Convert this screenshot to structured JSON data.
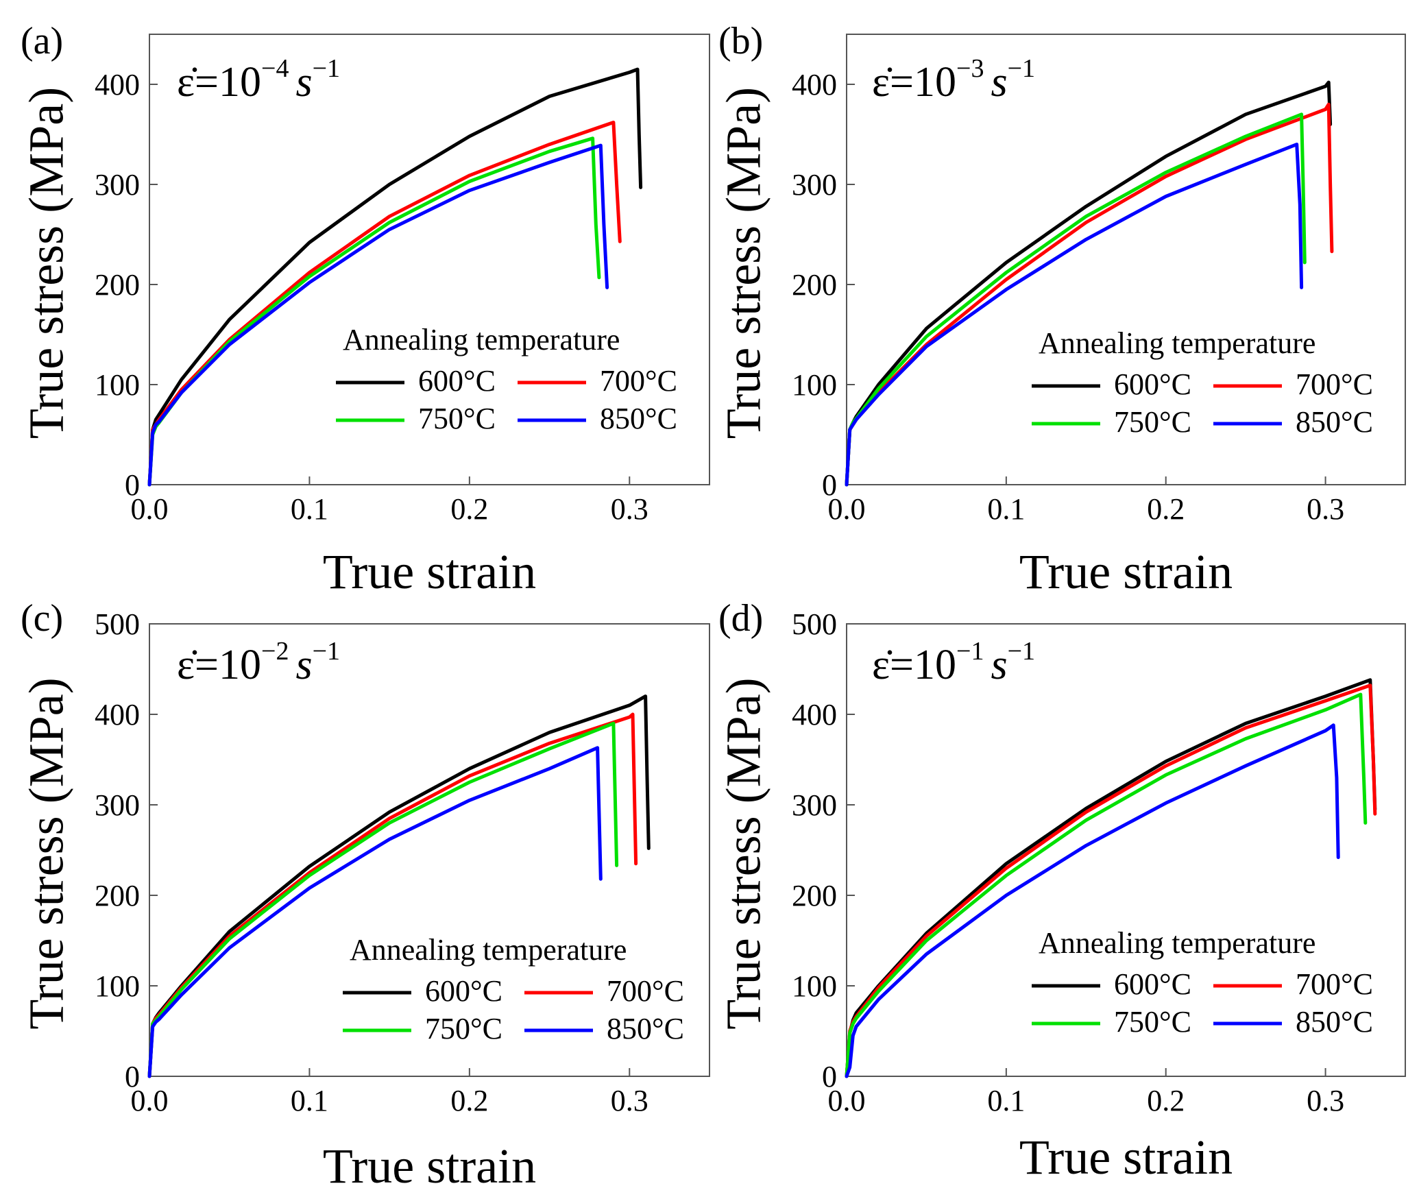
{
  "figure": {
    "legend_title": "Annealing temperature",
    "series_names": [
      "600°C",
      "700°C",
      "750°C",
      "850°C"
    ],
    "series_colors": [
      "#000000",
      "#ff0000",
      "#00e000",
      "#0000ff"
    ]
  },
  "chart_data": [
    {
      "type": "line",
      "panel_label": "(a)",
      "strain_rate": {
        "prefix": "ε̇=10",
        "exponent": "−4",
        "unit": "s",
        "unit_exponent": "−1"
      },
      "xlabel": "True strain",
      "ylabel": "True stress (MPa)",
      "xlim": [
        0.0,
        0.35
      ],
      "ylim": [
        0,
        450
      ],
      "xticks": [
        0.0,
        0.1,
        0.2,
        0.3
      ],
      "xtick_labels": [
        "0.0",
        "0.1",
        "0.2",
        "0.3"
      ],
      "yticks": [
        0,
        100,
        200,
        300,
        400
      ],
      "ytick_labels": [
        "0",
        "100",
        "200",
        "300",
        "400"
      ],
      "legend": {
        "title": "Annealing temperature",
        "position": "lower-right"
      },
      "series": [
        {
          "name": "600°C",
          "color": "#000000",
          "x": [
            0.0,
            0.002,
            0.004,
            0.006,
            0.02,
            0.05,
            0.1,
            0.15,
            0.2,
            0.25,
            0.3,
            0.305,
            0.306,
            0.307
          ],
          "y": [
            0,
            55,
            65,
            70,
            105,
            165,
            242,
            300,
            348,
            388,
            412,
            415,
            350,
            297
          ]
        },
        {
          "name": "700°C",
          "color": "#ff0000",
          "x": [
            0.0,
            0.002,
            0.004,
            0.006,
            0.02,
            0.05,
            0.1,
            0.15,
            0.2,
            0.25,
            0.29,
            0.292,
            0.294
          ],
          "y": [
            0,
            55,
            60,
            65,
            95,
            145,
            212,
            268,
            309,
            340,
            362,
            300,
            243
          ]
        },
        {
          "name": "750°C",
          "color": "#00e000",
          "x": [
            0.0,
            0.002,
            0.004,
            0.006,
            0.02,
            0.05,
            0.1,
            0.15,
            0.2,
            0.25,
            0.277,
            0.279,
            0.281
          ],
          "y": [
            0,
            50,
            58,
            62,
            92,
            143,
            208,
            262,
            303,
            333,
            346,
            260,
            207
          ]
        },
        {
          "name": "850°C",
          "color": "#0000ff",
          "x": [
            0.0,
            0.002,
            0.004,
            0.006,
            0.02,
            0.05,
            0.1,
            0.15,
            0.2,
            0.25,
            0.282,
            0.284,
            0.286
          ],
          "y": [
            0,
            52,
            60,
            63,
            92,
            140,
            202,
            255,
            294,
            322,
            339,
            260,
            197
          ]
        }
      ]
    },
    {
      "type": "line",
      "panel_label": "(b)",
      "strain_rate": {
        "prefix": "ε̇=10",
        "exponent": "−3",
        "unit": "s",
        "unit_exponent": "−1"
      },
      "xlabel": "True strain",
      "ylabel": "True stress (MPa)",
      "xlim": [
        0.0,
        0.35
      ],
      "ylim": [
        0,
        450
      ],
      "xticks": [
        0.0,
        0.1,
        0.2,
        0.3
      ],
      "xtick_labels": [
        "0.0",
        "0.1",
        "0.2",
        "0.3"
      ],
      "yticks": [
        0,
        100,
        200,
        300,
        400
      ],
      "ytick_labels": [
        "0",
        "100",
        "200",
        "300",
        "400"
      ],
      "legend": {
        "title": "Annealing temperature",
        "position": "lower-right"
      },
      "series": [
        {
          "name": "600°C",
          "color": "#000000",
          "x": [
            0.0,
            0.002,
            0.004,
            0.006,
            0.02,
            0.05,
            0.1,
            0.15,
            0.2,
            0.25,
            0.3,
            0.302,
            0.303
          ],
          "y": [
            0,
            55,
            62,
            68,
            100,
            156,
            222,
            278,
            328,
            370,
            398,
            402,
            360
          ]
        },
        {
          "name": "700°C",
          "color": "#ff0000",
          "x": [
            0.0,
            0.002,
            0.004,
            0.006,
            0.02,
            0.05,
            0.1,
            0.15,
            0.2,
            0.25,
            0.3,
            0.302,
            0.303,
            0.304
          ],
          "y": [
            0,
            55,
            60,
            65,
            92,
            140,
            205,
            262,
            308,
            345,
            375,
            380,
            300,
            233
          ]
        },
        {
          "name": "750°C",
          "color": "#00e000",
          "x": [
            0.0,
            0.002,
            0.004,
            0.006,
            0.02,
            0.05,
            0.1,
            0.15,
            0.2,
            0.25,
            0.285,
            0.286,
            0.287
          ],
          "y": [
            0,
            55,
            62,
            66,
            96,
            148,
            212,
            268,
            312,
            348,
            370,
            300,
            222
          ]
        },
        {
          "name": "850°C",
          "color": "#0000ff",
          "x": [
            0.0,
            0.002,
            0.004,
            0.006,
            0.02,
            0.05,
            0.1,
            0.15,
            0.2,
            0.25,
            0.282,
            0.284,
            0.285
          ],
          "y": [
            0,
            55,
            60,
            65,
            90,
            138,
            195,
            245,
            288,
            320,
            340,
            280,
            197
          ]
        }
      ]
    },
    {
      "type": "line",
      "panel_label": "(c)",
      "strain_rate": {
        "prefix": "ε̇=10",
        "exponent": "−2",
        "unit": "s",
        "unit_exponent": "−1"
      },
      "xlabel": "True strain",
      "ylabel": "True stress (MPa)",
      "xlim": [
        0.0,
        0.35
      ],
      "ylim": [
        0,
        500
      ],
      "xticks": [
        0.0,
        0.1,
        0.2,
        0.3
      ],
      "xtick_labels": [
        "0.0",
        "0.1",
        "0.2",
        "0.3"
      ],
      "yticks": [
        0,
        100,
        200,
        300,
        400,
        500
      ],
      "ytick_labels": [
        "0",
        "100",
        "200",
        "300",
        "400",
        "500"
      ],
      "legend": {
        "title": "Annealing temperature",
        "position": "lower-right"
      },
      "series": [
        {
          "name": "600°C",
          "color": "#000000",
          "x": [
            0.0,
            0.002,
            0.004,
            0.006,
            0.02,
            0.05,
            0.1,
            0.15,
            0.2,
            0.25,
            0.3,
            0.31,
            0.311,
            0.312
          ],
          "y": [
            0,
            58,
            65,
            70,
            100,
            160,
            232,
            292,
            340,
            380,
            410,
            420,
            330,
            252
          ]
        },
        {
          "name": "700°C",
          "color": "#ff0000",
          "x": [
            0.0,
            0.002,
            0.004,
            0.006,
            0.02,
            0.05,
            0.1,
            0.15,
            0.2,
            0.25,
            0.3,
            0.302,
            0.304
          ],
          "y": [
            0,
            58,
            64,
            68,
            98,
            155,
            225,
            285,
            332,
            368,
            397,
            400,
            235
          ]
        },
        {
          "name": "750°C",
          "color": "#00e000",
          "x": [
            0.0,
            0.002,
            0.004,
            0.006,
            0.02,
            0.05,
            0.1,
            0.15,
            0.2,
            0.25,
            0.29,
            0.292
          ],
          "y": [
            0,
            58,
            62,
            66,
            96,
            152,
            222,
            280,
            325,
            362,
            390,
            233
          ]
        },
        {
          "name": "850°C",
          "color": "#0000ff",
          "x": [
            0.0,
            0.002,
            0.004,
            0.006,
            0.02,
            0.05,
            0.1,
            0.15,
            0.2,
            0.25,
            0.28,
            0.282
          ],
          "y": [
            0,
            55,
            60,
            63,
            90,
            142,
            208,
            262,
            305,
            340,
            363,
            218
          ]
        }
      ]
    },
    {
      "type": "line",
      "panel_label": "(d)",
      "strain_rate": {
        "prefix": "ε̇=10",
        "exponent": "−1",
        "unit": "s",
        "unit_exponent": "−1"
      },
      "xlabel": "True strain",
      "ylabel": "True stress (MPa)",
      "xlim": [
        0.0,
        0.35
      ],
      "ylim": [
        0,
        500
      ],
      "xticks": [
        0.0,
        0.1,
        0.2,
        0.3
      ],
      "xtick_labels": [
        "0.0",
        "0.1",
        "0.2",
        "0.3"
      ],
      "yticks": [
        0,
        100,
        200,
        300,
        400,
        500
      ],
      "ytick_labels": [
        "0",
        "100",
        "200",
        "300",
        "400",
        "500"
      ],
      "legend": {
        "title": "Annealing temperature",
        "position": "lower-right"
      },
      "series": [
        {
          "name": "600°C",
          "color": "#000000",
          "x": [
            0.0,
            0.002,
            0.004,
            0.006,
            0.02,
            0.05,
            0.1,
            0.15,
            0.2,
            0.25,
            0.3,
            0.328,
            0.33,
            0.331
          ],
          "y": [
            0,
            48,
            62,
            70,
            100,
            158,
            235,
            296,
            348,
            390,
            420,
            438,
            350,
            295
          ]
        },
        {
          "name": "700°C",
          "color": "#ff0000",
          "x": [
            0.0,
            0.002,
            0.004,
            0.006,
            0.02,
            0.05,
            0.1,
            0.15,
            0.2,
            0.25,
            0.3,
            0.328,
            0.33,
            0.331
          ],
          "y": [
            0,
            50,
            60,
            66,
            98,
            155,
            230,
            292,
            343,
            385,
            415,
            432,
            350,
            290
          ]
        },
        {
          "name": "750°C",
          "color": "#00e000",
          "x": [
            0.0,
            0.002,
            0.004,
            0.006,
            0.02,
            0.05,
            0.1,
            0.15,
            0.2,
            0.25,
            0.3,
            0.322,
            0.324,
            0.325
          ],
          "y": [
            0,
            48,
            58,
            64,
            94,
            150,
            222,
            283,
            333,
            373,
            405,
            422,
            330,
            280
          ]
        },
        {
          "name": "850°C",
          "color": "#0000ff",
          "x": [
            0.0,
            0.002,
            0.004,
            0.006,
            0.02,
            0.05,
            0.1,
            0.15,
            0.2,
            0.25,
            0.3,
            0.305,
            0.307,
            0.308
          ],
          "y": [
            0,
            10,
            45,
            55,
            85,
            135,
            200,
            255,
            302,
            343,
            382,
            388,
            330,
            242
          ]
        }
      ]
    }
  ]
}
